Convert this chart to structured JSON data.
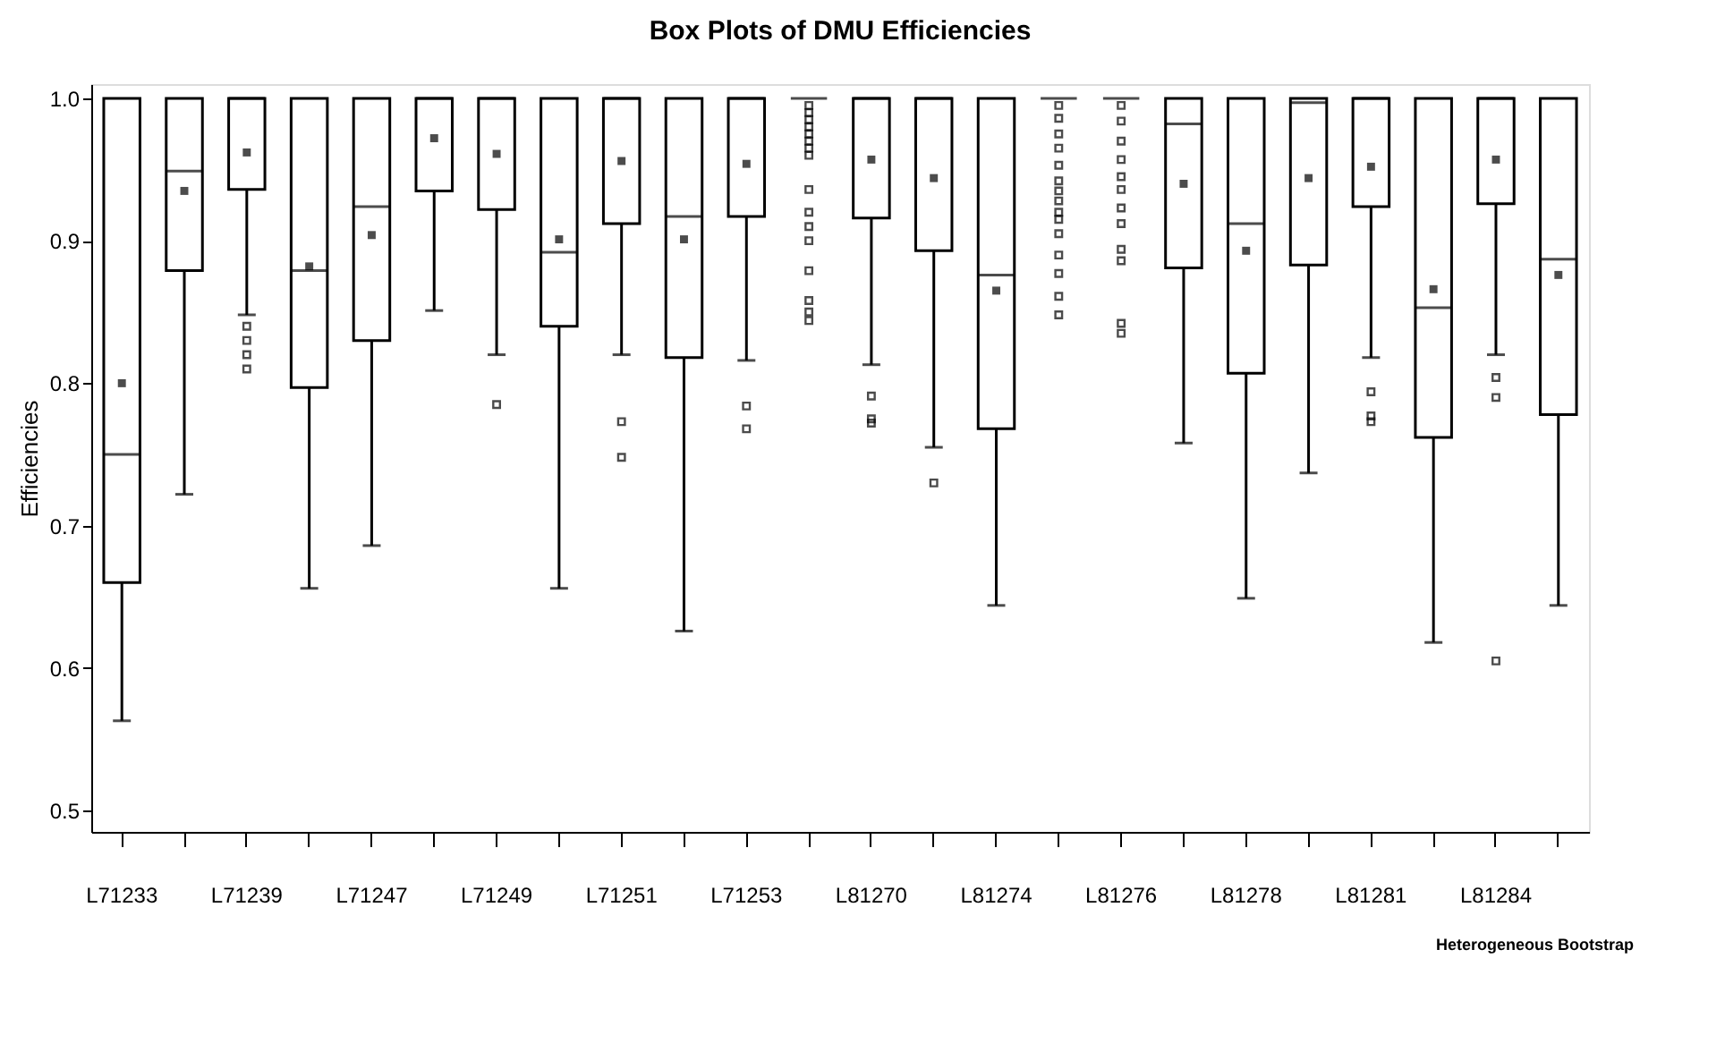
{
  "chart_data": {
    "type": "box",
    "title": "Box Plots of DMU Efficiencies",
    "ylabel": "Efficiencies",
    "categories": [
      "L71233",
      null,
      "L71239",
      null,
      "L71247",
      null,
      "L71249",
      null,
      "L71251",
      null,
      "L71253",
      null,
      "L81270",
      null,
      "L81274",
      null,
      "L81276",
      null,
      "L81278",
      null,
      "L81281",
      null,
      "L81284",
      null
    ],
    "boxes": [
      {
        "low": 0.563,
        "q1": 0.66,
        "median": 0.75,
        "q3": 1.0,
        "high": 1.0,
        "mean": 0.8
      },
      {
        "low": 0.722,
        "q1": 0.879,
        "median": 0.949,
        "q3": 1.0,
        "high": 1.0,
        "mean": 0.935
      },
      {
        "low": 0.848,
        "q1": 0.936,
        "median": 1.0,
        "q3": 1.0,
        "high": 1.0,
        "mean": 0.962,
        "outliers": [
          0.84,
          0.83,
          0.82,
          0.81
        ]
      },
      {
        "low": 0.656,
        "q1": 0.797,
        "median": 0.879,
        "q3": 1.0,
        "high": 1.0,
        "mean": 0.882
      },
      {
        "low": 0.686,
        "q1": 0.83,
        "median": 0.924,
        "q3": 1.0,
        "high": 1.0,
        "mean": 0.904
      },
      {
        "low": 0.851,
        "q1": 0.935,
        "median": 1.0,
        "q3": 1.0,
        "high": 1.0,
        "mean": 0.972
      },
      {
        "low": 0.82,
        "q1": 0.922,
        "median": 1.0,
        "q3": 1.0,
        "high": 1.0,
        "mean": 0.961,
        "outliers": [
          0.785
        ]
      },
      {
        "low": 0.656,
        "q1": 0.84,
        "median": 0.892,
        "q3": 1.0,
        "high": 1.0,
        "mean": 0.901
      },
      {
        "low": 0.82,
        "q1": 0.912,
        "median": 1.0,
        "q3": 1.0,
        "high": 1.0,
        "mean": 0.956,
        "outliers": [
          0.773,
          0.748
        ]
      },
      {
        "low": 0.626,
        "q1": 0.818,
        "median": 0.917,
        "q3": 1.0,
        "high": 1.0,
        "mean": 0.901
      },
      {
        "low": 0.816,
        "q1": 0.917,
        "median": 1.0,
        "q3": 1.0,
        "high": 1.0,
        "mean": 0.954,
        "outliers": [
          0.784,
          0.768
        ]
      },
      {
        "low": 1.0,
        "q1": 1.0,
        "median": 1.0,
        "q3": 1.0,
        "high": 1.0,
        "outliers": [
          0.995,
          0.99,
          0.985,
          0.98,
          0.975,
          0.97,
          0.965,
          0.96,
          0.936,
          0.92,
          0.91,
          0.9,
          0.879,
          0.858,
          0.85,
          0.844
        ]
      },
      {
        "low": 0.813,
        "q1": 0.916,
        "median": 1.0,
        "q3": 1.0,
        "high": 1.0,
        "mean": 0.957,
        "outliers": [
          0.791,
          0.775,
          0.772
        ]
      },
      {
        "low": 0.755,
        "q1": 0.893,
        "median": 1.0,
        "q3": 1.0,
        "high": 1.0,
        "mean": 0.944,
        "outliers": [
          0.73
        ]
      },
      {
        "low": 0.644,
        "q1": 0.768,
        "median": 0.876,
        "q3": 1.0,
        "high": 1.0,
        "mean": 0.865
      },
      {
        "low": 1.0,
        "q1": 1.0,
        "median": 1.0,
        "q3": 1.0,
        "high": 1.0,
        "outliers": [
          0.995,
          0.986,
          0.975,
          0.965,
          0.953,
          0.942,
          0.935,
          0.928,
          0.92,
          0.915,
          0.905,
          0.89,
          0.877,
          0.861,
          0.848
        ]
      },
      {
        "low": 1.0,
        "q1": 1.0,
        "median": 1.0,
        "q3": 1.0,
        "high": 1.0,
        "outliers": [
          0.995,
          0.984,
          0.97,
          0.957,
          0.945,
          0.936,
          0.923,
          0.912,
          0.894,
          0.886,
          0.842,
          0.835
        ]
      },
      {
        "low": 0.758,
        "q1": 0.881,
        "median": 0.982,
        "q3": 1.0,
        "high": 1.0,
        "mean": 0.94
      },
      {
        "low": 0.649,
        "q1": 0.807,
        "median": 0.912,
        "q3": 1.0,
        "high": 1.0,
        "mean": 0.893
      },
      {
        "low": 0.737,
        "q1": 0.883,
        "median": 0.997,
        "q3": 1.0,
        "high": 1.0,
        "mean": 0.944
      },
      {
        "low": 0.818,
        "q1": 0.924,
        "median": 1.0,
        "q3": 1.0,
        "high": 1.0,
        "mean": 0.952,
        "outliers": [
          0.794,
          0.777,
          0.773
        ]
      },
      {
        "low": 0.618,
        "q1": 0.762,
        "median": 0.853,
        "q3": 1.0,
        "high": 1.0,
        "mean": 0.866
      },
      {
        "low": 0.82,
        "q1": 0.926,
        "median": 1.0,
        "q3": 1.0,
        "high": 1.0,
        "mean": 0.957,
        "outliers": [
          0.804,
          0.79,
          0.605
        ]
      },
      {
        "low": 0.644,
        "q1": 0.778,
        "median": 0.887,
        "q3": 1.0,
        "high": 1.0,
        "mean": 0.876
      }
    ],
    "ylim": [
      0.485,
      1.01
    ],
    "yticks": [
      {
        "value": 0.5,
        "label": "0.5"
      },
      {
        "value": 0.6,
        "label": "0.6"
      },
      {
        "value": 0.7,
        "label": "0.7"
      },
      {
        "value": 0.8,
        "label": "0.8"
      },
      {
        "value": 0.9,
        "label": "0.9"
      },
      {
        "value": 1.0,
        "label": "1.0"
      }
    ],
    "grid": false,
    "annotations": [
      "Heterogeneous Bootstrap"
    ]
  }
}
